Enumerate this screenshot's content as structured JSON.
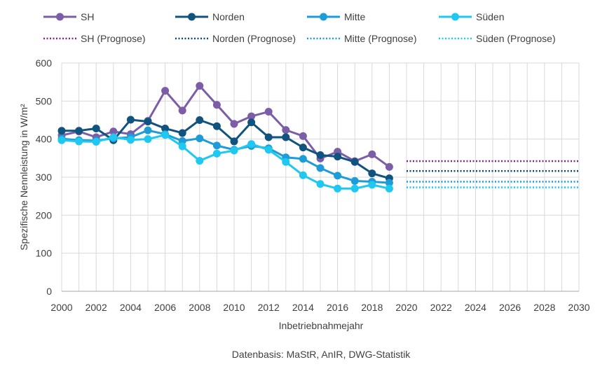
{
  "chart_data": {
    "type": "line",
    "xlabel": "Inbetriebnahmejahr",
    "ylabel": "Spezifische Nennleistung in W/m²",
    "xlim": [
      2000,
      2030
    ],
    "ylim": [
      0,
      600
    ],
    "x_ticks": [
      "2000",
      "2002",
      "2004",
      "2006",
      "2008",
      "2010",
      "2012",
      "2014",
      "2016",
      "2018",
      "2020",
      "2022",
      "2024",
      "2026",
      "2028",
      "2030"
    ],
    "y_ticks": [
      "0",
      "100",
      "200",
      "300",
      "400",
      "500",
      "600"
    ],
    "grid": true,
    "legend_position": "top",
    "source_note": "Datenbasis: MaStR, AnIR, DWG-Statistik",
    "x": [
      2000,
      2001,
      2002,
      2003,
      2004,
      2005,
      2006,
      2007,
      2008,
      2009,
      2010,
      2011,
      2012,
      2013,
      2014,
      2015,
      2016,
      2017,
      2018,
      2019
    ],
    "series": [
      {
        "name": "SH",
        "color": "#7b5ea7",
        "values": [
          410,
          420,
          405,
          420,
          413,
          448,
          527,
          475,
          540,
          490,
          440,
          460,
          472,
          424,
          408,
          349,
          367,
          342,
          360,
          327
        ]
      },
      {
        "name": "Norden",
        "color": "#10537f",
        "values": [
          422,
          422,
          428,
          397,
          451,
          446,
          428,
          416,
          450,
          434,
          394,
          444,
          405,
          405,
          378,
          358,
          354,
          340,
          310,
          297
        ]
      },
      {
        "name": "Mitte",
        "color": "#1e9cd7",
        "values": [
          401,
          397,
          396,
          402,
          405,
          423,
          413,
          395,
          402,
          383,
          372,
          382,
          376,
          352,
          348,
          324,
          304,
          290,
          288,
          285
        ]
      },
      {
        "name": "Süden",
        "color": "#1ec8f0",
        "values": [
          397,
          394,
          393,
          405,
          398,
          400,
          411,
          381,
          343,
          362,
          370,
          387,
          372,
          340,
          305,
          282,
          270,
          270,
          280,
          270
        ]
      }
    ],
    "forecast_series": [
      {
        "name": "SH (Prognose)",
        "color": "#7b2a86",
        "x_range": [
          2020,
          2030
        ],
        "value": 342
      },
      {
        "name": "Norden (Prognose)",
        "color": "#0b4a73",
        "x_range": [
          2020,
          2030
        ],
        "value": 316
      },
      {
        "name": "Mitte (Prognose)",
        "color": "#1e9cd7",
        "x_range": [
          2020,
          2030
        ],
        "value": 288
      },
      {
        "name": "Süden (Prognose)",
        "color": "#1ec8f0",
        "x_range": [
          2020,
          2030
        ],
        "value": 273
      }
    ]
  }
}
